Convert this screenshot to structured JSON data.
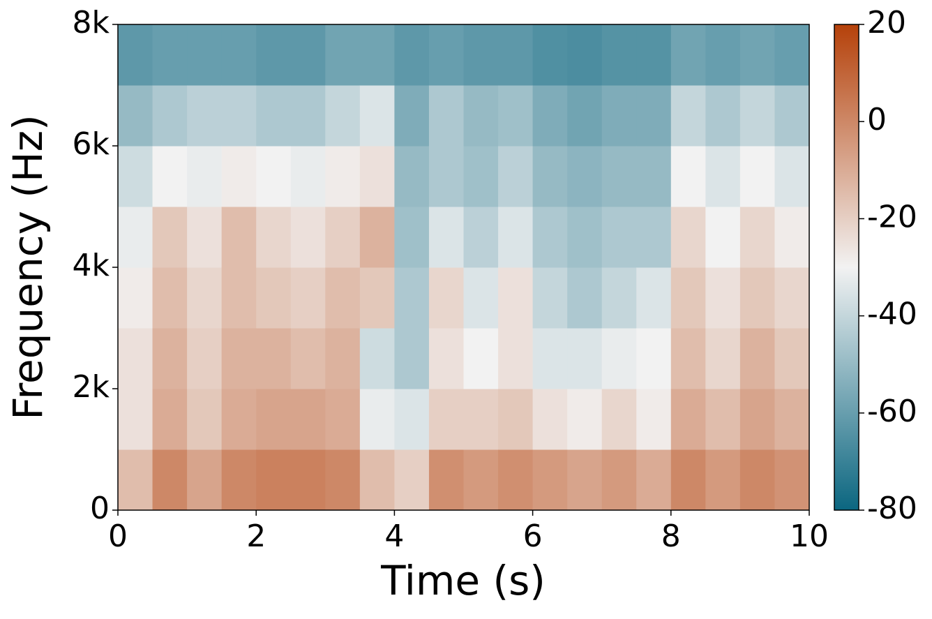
{
  "chart_data": {
    "type": "spectrogram",
    "xlabel": "Time (s)",
    "ylabel": "Frequency (Hz)",
    "xlim": [
      0,
      10
    ],
    "xticks": [
      0,
      2,
      4,
      6,
      8,
      10
    ],
    "ylim": [
      0,
      8000
    ],
    "yticks": [
      0,
      {
        "value": 2000,
        "label": "2k"
      },
      {
        "value": 4000,
        "label": "4k"
      },
      {
        "value": 6000,
        "label": "6k"
      },
      {
        "value": 8000,
        "label": "8k"
      }
    ],
    "clim": [
      -80,
      20
    ],
    "cticks": [
      -80,
      -60,
      -40,
      -20,
      0,
      20
    ],
    "colormap": [
      "#0b6680",
      "#f2f2f2",
      "#b5410a"
    ],
    "values": [
      [
        -15,
        -25,
        -25,
        -28,
        -32,
        -38,
        -50,
        -62
      ],
      [
        0,
        -10,
        -12,
        -15,
        -18,
        -30,
        -45,
        -60
      ],
      [
        -8,
        -18,
        -20,
        -22,
        -25,
        -32,
        -42,
        -60
      ],
      [
        0,
        -10,
        -12,
        -15,
        -15,
        -28,
        -42,
        -60
      ],
      [
        2,
        -8,
        -12,
        -18,
        -22,
        -30,
        -45,
        -62
      ],
      [
        2,
        -8,
        -15,
        -20,
        -25,
        -32,
        -45,
        -62
      ],
      [
        0,
        -10,
        -12,
        -15,
        -20,
        -28,
        -40,
        -58
      ],
      [
        -15,
        -32,
        -38,
        -18,
        -12,
        -25,
        -35,
        -58
      ],
      [
        -20,
        -35,
        -45,
        -45,
        -48,
        -50,
        -55,
        -62
      ],
      [
        -2,
        -20,
        -25,
        -22,
        -35,
        -45,
        -45,
        -60
      ],
      [
        -5,
        -20,
        -30,
        -35,
        -42,
        -48,
        -50,
        -62
      ],
      [
        -2,
        -18,
        -25,
        -25,
        -35,
        -42,
        -48,
        -62
      ],
      [
        -5,
        -25,
        -35,
        -40,
        -45,
        -50,
        -55,
        -65
      ],
      [
        -8,
        -28,
        -35,
        -45,
        -48,
        -52,
        -58,
        -66
      ],
      [
        -5,
        -22,
        -32,
        -40,
        -45,
        -50,
        -55,
        -64
      ],
      [
        -10,
        -28,
        -30,
        -35,
        -45,
        -50,
        -55,
        -64
      ],
      [
        0,
        -10,
        -15,
        -18,
        -22,
        -30,
        -40,
        -58
      ],
      [
        -5,
        -15,
        -22,
        -25,
        -30,
        -35,
        -45,
        -60
      ],
      [
        0,
        -8,
        -12,
        -18,
        -22,
        -30,
        -40,
        -58
      ],
      [
        -3,
        -12,
        -18,
        -22,
        -28,
        -35,
        -45,
        -60
      ]
    ]
  }
}
